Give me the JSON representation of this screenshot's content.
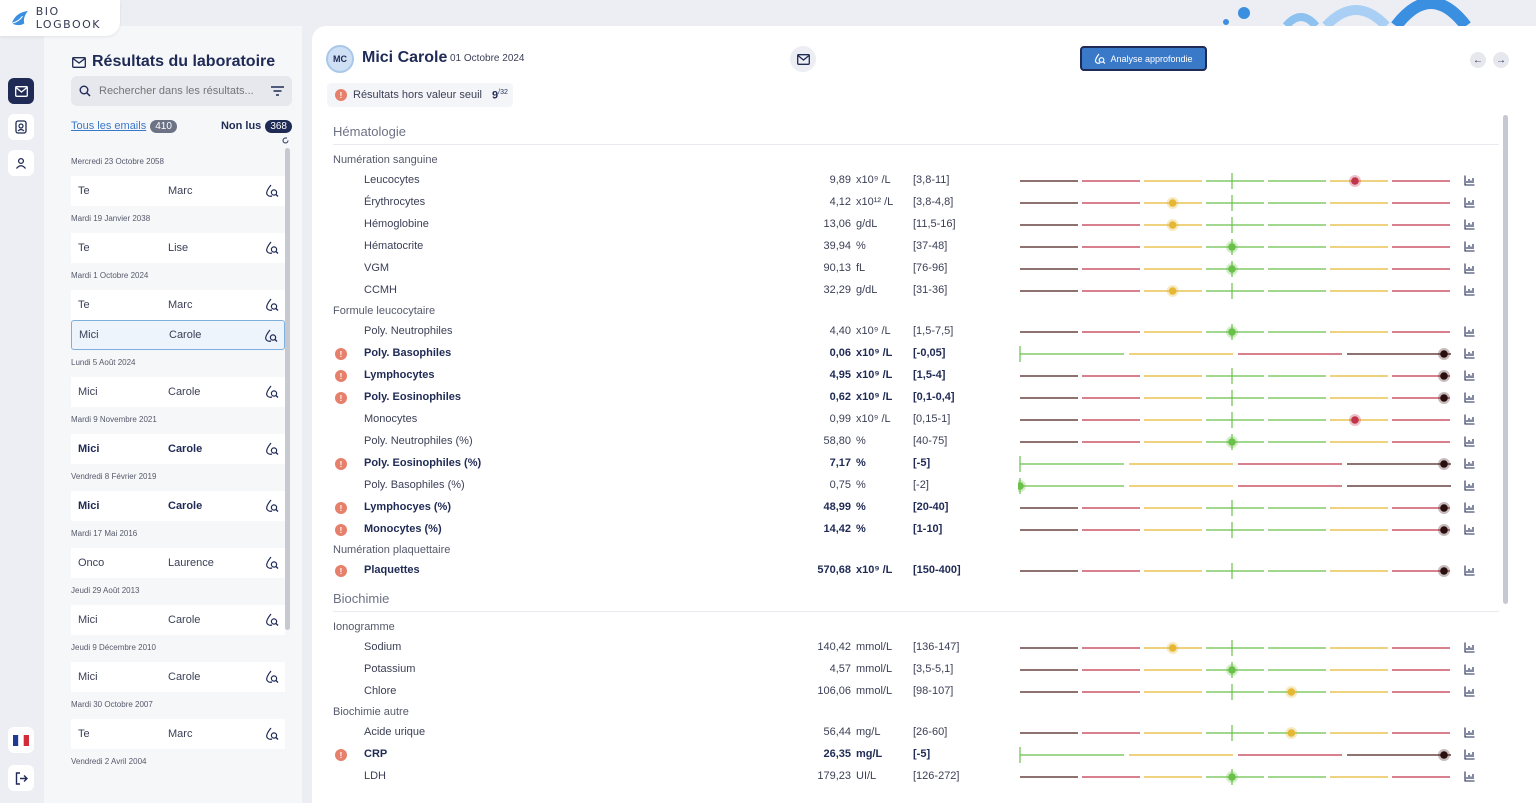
{
  "app": {
    "logo_text": "BIO LOGBOOK"
  },
  "panel": {
    "title": "Résultats du laboratoire",
    "search_placeholder": "Rechercher dans les résultats...",
    "all_emails_label": "Tous les emails",
    "all_emails_count": "410",
    "unread_label": "Non lus",
    "unread_count": "368",
    "groups": [
      {
        "date": "Mercredi 23 Octobre 2058",
        "mails": [
          {
            "from": "Te",
            "name": "Marc",
            "bold": false,
            "selected": false
          }
        ]
      },
      {
        "date": "Mardi 19 Janvier 2038",
        "mails": [
          {
            "from": "Te",
            "name": "Lise",
            "bold": false,
            "selected": false
          }
        ]
      },
      {
        "date": "Mardi 1 Octobre 2024",
        "mails": [
          {
            "from": "Te",
            "name": "Marc",
            "bold": false,
            "selected": false
          },
          {
            "from": "Mici",
            "name": "Carole",
            "bold": false,
            "selected": true
          }
        ]
      },
      {
        "date": "Lundi 5 Août 2024",
        "mails": [
          {
            "from": "Mici",
            "name": "Carole",
            "bold": false,
            "selected": false
          }
        ]
      },
      {
        "date": "Mardi 9 Novembre 2021",
        "mails": [
          {
            "from": "Mici",
            "name": "Carole",
            "bold": true,
            "selected": false
          }
        ]
      },
      {
        "date": "Vendredi 8 Février 2019",
        "mails": [
          {
            "from": "Mici",
            "name": "Carole",
            "bold": true,
            "selected": false
          }
        ]
      },
      {
        "date": "Mardi 17 Mai 2016",
        "mails": [
          {
            "from": "Onco",
            "name": "Laurence",
            "bold": false,
            "selected": false
          }
        ]
      },
      {
        "date": "Jeudi 29 Août 2013",
        "mails": [
          {
            "from": "Mici",
            "name": "Carole",
            "bold": false,
            "selected": false
          }
        ]
      },
      {
        "date": "Jeudi 9 Décembre 2010",
        "mails": [
          {
            "from": "Mici",
            "name": "Carole",
            "bold": false,
            "selected": false
          }
        ]
      },
      {
        "date": "Mardi 30 Octobre 2007",
        "mails": [
          {
            "from": "Te",
            "name": "Marc",
            "bold": false,
            "selected": false
          }
        ]
      },
      {
        "date": "Vendredi 2 Avril 2004",
        "mails": []
      }
    ]
  },
  "header": {
    "initials": "MC",
    "patient_name": "Mici Carole",
    "date": "01 Octobre 2024",
    "analyse_button": "Analyse approfondie",
    "threshold_label": "Résultats hors valeur seuil",
    "threshold_count": "9",
    "threshold_total": "/32"
  },
  "colors": {
    "red": "#c0354a",
    "yellow": "#e4b735",
    "green": "#6ac14a",
    "dark": "#4a1f1f",
    "navy": "#1f2a55",
    "blue": "#3a78c8"
  },
  "sections": [
    {
      "title": "Hématologie",
      "subsections": [
        {
          "title": "Numération sanguine",
          "rows": [
            {
              "label": "Leucocytes",
              "value": "9,89",
              "unit": "x10⁹ /L",
              "ref": "[3,8-11]",
              "flag": false,
              "gauge": "full",
              "marker": 0.79,
              "marker_color": "red"
            },
            {
              "label": "Érythrocytes",
              "value": "4,12",
              "unit": "x10¹² /L",
              "ref": "[3,8-4,8]",
              "flag": false,
              "gauge": "full",
              "marker": 0.36,
              "marker_color": "yellow"
            },
            {
              "label": "Hémoglobine",
              "value": "13,06",
              "unit": "g/dL",
              "ref": "[11,5-16]",
              "flag": false,
              "gauge": "full",
              "marker": 0.36,
              "marker_color": "yellow"
            },
            {
              "label": "Hématocrite",
              "value": "39,94",
              "unit": "%",
              "ref": "[37-48]",
              "flag": false,
              "gauge": "full",
              "marker": 0.5,
              "marker_color": "green"
            },
            {
              "label": "VGM",
              "value": "90,13",
              "unit": "fL",
              "ref": "[76-96]",
              "flag": false,
              "gauge": "full",
              "marker": 0.5,
              "marker_color": "green"
            },
            {
              "label": "CCMH",
              "value": "32,29",
              "unit": "g/dL",
              "ref": "[31-36]",
              "flag": false,
              "gauge": "full",
              "marker": 0.36,
              "marker_color": "yellow"
            }
          ]
        },
        {
          "title": "Formule leucocytaire",
          "rows": [
            {
              "label": "Poly. Neutrophiles",
              "value": "4,40",
              "unit": "x10⁹ /L",
              "ref": "[1,5-7,5]",
              "flag": false,
              "gauge": "full",
              "marker": 0.5,
              "marker_color": "green"
            },
            {
              "label": "Poly. Basophiles",
              "value": "0,06",
              "unit": "x10⁹ /L",
              "ref": "[-0,05]",
              "flag": true,
              "gauge": "upper",
              "marker": 1.0,
              "marker_color": "dark"
            },
            {
              "label": "Lymphocytes",
              "value": "4,95",
              "unit": "x10⁹ /L",
              "ref": "[1,5-4]",
              "flag": true,
              "gauge": "full",
              "marker": 1.0,
              "marker_color": "dark"
            },
            {
              "label": "Poly. Eosinophiles",
              "value": "0,62",
              "unit": "x10⁹ /L",
              "ref": "[0,1-0,4]",
              "flag": true,
              "gauge": "full",
              "marker": 1.0,
              "marker_color": "dark"
            },
            {
              "label": "Monocytes",
              "value": "0,99",
              "unit": "x10⁹ /L",
              "ref": "[0,15-1]",
              "flag": false,
              "gauge": "full",
              "marker": 0.79,
              "marker_color": "red"
            },
            {
              "label": "Poly. Neutrophiles (%)",
              "value": "58,80",
              "unit": "%",
              "ref": "[40-75]",
              "flag": false,
              "gauge": "full",
              "marker": 0.5,
              "marker_color": "green"
            },
            {
              "label": "Poly. Eosinophiles (%)",
              "value": "7,17",
              "unit": "%",
              "ref": "[-5]",
              "flag": true,
              "gauge": "upper",
              "marker": 1.0,
              "marker_color": "dark"
            },
            {
              "label": "Poly. Basophiles (%)",
              "value": "0,75",
              "unit": "%",
              "ref": "[-2]",
              "flag": false,
              "gauge": "upper",
              "marker": 0.0,
              "marker_color": "green"
            },
            {
              "label": "Lymphocyes (%)",
              "value": "48,99",
              "unit": "%",
              "ref": "[20-40]",
              "flag": true,
              "gauge": "full",
              "marker": 1.0,
              "marker_color": "dark"
            },
            {
              "label": "Monocytes (%)",
              "value": "14,42",
              "unit": "%",
              "ref": "[1-10]",
              "flag": true,
              "gauge": "full",
              "marker": 1.0,
              "marker_color": "dark"
            }
          ]
        },
        {
          "title": "Numération plaquettaire",
          "rows": [
            {
              "label": "Plaquettes",
              "value": "570,68",
              "unit": "x10⁹ /L",
              "ref": "[150-400]",
              "flag": true,
              "gauge": "full",
              "marker": 1.0,
              "marker_color": "dark"
            }
          ]
        }
      ]
    },
    {
      "title": "Biochimie",
      "subsections": [
        {
          "title": "Ionogramme",
          "rows": [
            {
              "label": "Sodium",
              "value": "140,42",
              "unit": "mmol/L",
              "ref": "[136-147]",
              "flag": false,
              "gauge": "full",
              "marker": 0.36,
              "marker_color": "yellow"
            },
            {
              "label": "Potassium",
              "value": "4,57",
              "unit": "mmol/L",
              "ref": "[3,5-5,1]",
              "flag": false,
              "gauge": "full",
              "marker": 0.5,
              "marker_color": "green"
            },
            {
              "label": "Chlore",
              "value": "106,06",
              "unit": "mmol/L",
              "ref": "[98-107]",
              "flag": false,
              "gauge": "full",
              "marker": 0.64,
              "marker_color": "yellow"
            }
          ]
        },
        {
          "title": "Biochimie autre",
          "rows": [
            {
              "label": "Acide urique",
              "value": "56,44",
              "unit": "mg/L",
              "ref": "[26-60]",
              "flag": false,
              "gauge": "full",
              "marker": 0.64,
              "marker_color": "yellow"
            },
            {
              "label": "CRP",
              "value": "26,35",
              "unit": "mg/L",
              "ref": "[-5]",
              "flag": true,
              "gauge": "upper",
              "marker": 1.0,
              "marker_color": "dark"
            },
            {
              "label": "LDH",
              "value": "179,23",
              "unit": "UI/L",
              "ref": "[126-272]",
              "flag": false,
              "gauge": "full",
              "marker": 0.5,
              "marker_color": "green"
            }
          ]
        }
      ]
    }
  ]
}
